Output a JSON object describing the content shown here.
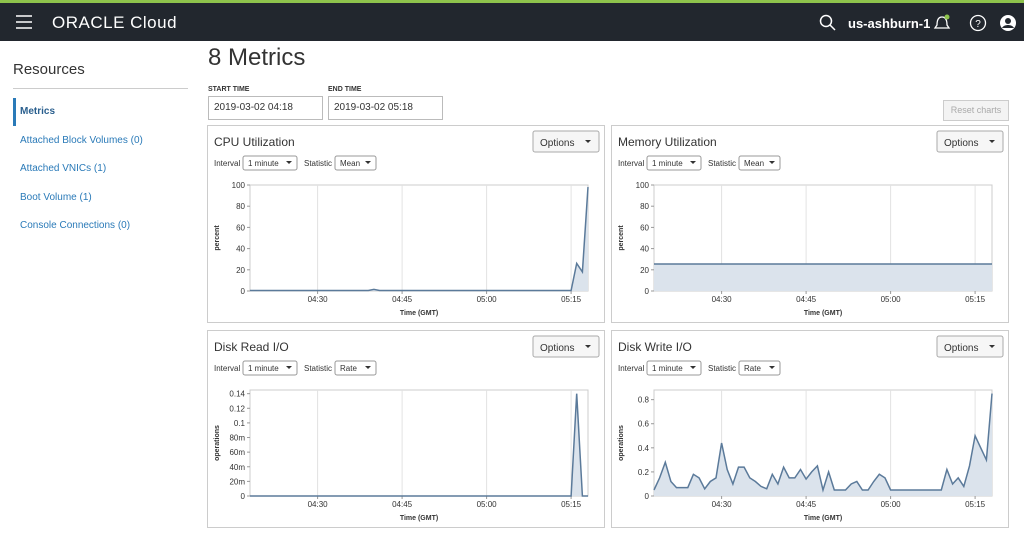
{
  "header": {
    "brand": "ORACLE Cloud",
    "region": "us-ashburn-1"
  },
  "sidebar": {
    "title": "Resources",
    "items": [
      "Metrics",
      "Attached Block Volumes (0)",
      "Attached VNICs (1)",
      "Boot Volume (1)",
      "Console Connections (0)"
    ]
  },
  "page": {
    "title": "8 Metrics",
    "start_label": "START TIME",
    "start_value": "2019-03-02 04:18",
    "end_label": "END TIME",
    "end_value": "2019-03-02 05:18",
    "reset": "Reset charts"
  },
  "chart_data": [
    {
      "type": "line",
      "title": "CPU Utilization",
      "options": "Options",
      "interval_label": "Interval",
      "interval": "1 minute",
      "statistic_label": "Statistic",
      "statistic": "Mean",
      "y_label": "percent",
      "x_label": "Time (GMT)",
      "color": "#5b7a9a",
      "grid": true,
      "x": [
        "04:18",
        "04:19",
        "04:20",
        "04:21",
        "04:22",
        "04:23",
        "04:24",
        "04:25",
        "04:26",
        "04:27",
        "04:28",
        "04:29",
        "04:30",
        "04:31",
        "04:32",
        "04:33",
        "04:34",
        "04:35",
        "04:36",
        "04:37",
        "04:38",
        "04:39",
        "04:40",
        "04:41",
        "04:42",
        "04:43",
        "04:44",
        "04:45",
        "04:46",
        "04:47",
        "04:48",
        "04:49",
        "04:50",
        "04:51",
        "04:52",
        "04:53",
        "04:54",
        "04:55",
        "04:56",
        "04:57",
        "04:58",
        "04:59",
        "05:00",
        "05:01",
        "05:02",
        "05:03",
        "05:04",
        "05:05",
        "05:06",
        "05:07",
        "05:08",
        "05:09",
        "05:10",
        "05:11",
        "05:12",
        "05:13",
        "05:14",
        "05:15",
        "05:16",
        "05:17",
        "05:18"
      ],
      "values": [
        0.5,
        0.5,
        0.5,
        0.5,
        0.5,
        0.5,
        0.5,
        0.5,
        0.5,
        0.5,
        0.5,
        0.5,
        0.5,
        0.5,
        0.5,
        0.5,
        0.5,
        0.5,
        0.5,
        0.5,
        0.5,
        0.5,
        1.5,
        0.5,
        0.5,
        0.5,
        0.5,
        0.5,
        0.5,
        0.5,
        0.5,
        0.5,
        0.5,
        0.5,
        0.5,
        0.5,
        0.5,
        0.5,
        0.5,
        0.5,
        0.5,
        0.5,
        0.5,
        0.5,
        0.5,
        0.5,
        0.5,
        0.5,
        0.5,
        0.5,
        0.5,
        0.5,
        0.5,
        0.5,
        0.5,
        0.5,
        0.5,
        0.5,
        26,
        18,
        98
      ],
      "ylim": [
        0,
        100
      ],
      "yticks": [
        0,
        20,
        40,
        60,
        80,
        100
      ],
      "xticks": [
        "04:30",
        "04:45",
        "05:00",
        "05:15"
      ]
    },
    {
      "type": "line",
      "title": "Memory Utilization",
      "options": "Options",
      "interval_label": "Interval",
      "interval": "1 minute",
      "statistic_label": "Statistic",
      "statistic": "Mean",
      "y_label": "percent",
      "x_label": "Time (GMT)",
      "color": "#5b7a9a",
      "grid": true,
      "x": [
        "04:18",
        "04:19",
        "04:20",
        "04:21",
        "04:22",
        "04:23",
        "04:24",
        "04:25",
        "04:26",
        "04:27",
        "04:28",
        "04:29",
        "04:30",
        "04:31",
        "04:32",
        "04:33",
        "04:34",
        "04:35",
        "04:36",
        "04:37",
        "04:38",
        "04:39",
        "04:40",
        "04:41",
        "04:42",
        "04:43",
        "04:44",
        "04:45",
        "04:46",
        "04:47",
        "04:48",
        "04:49",
        "04:50",
        "04:51",
        "04:52",
        "04:53",
        "04:54",
        "04:55",
        "04:56",
        "04:57",
        "04:58",
        "04:59",
        "05:00",
        "05:01",
        "05:02",
        "05:03",
        "05:04",
        "05:05",
        "05:06",
        "05:07",
        "05:08",
        "05:09",
        "05:10",
        "05:11",
        "05:12",
        "05:13",
        "05:14",
        "05:15",
        "05:16",
        "05:17",
        "05:18"
      ],
      "values": [
        25.5,
        25.5,
        25.5,
        25.5,
        25.5,
        25.5,
        25.5,
        25.5,
        25.5,
        25.5,
        25.5,
        25.5,
        25.5,
        25.5,
        25.5,
        25.5,
        25.5,
        25.5,
        25.5,
        25.5,
        25.5,
        25.5,
        25.5,
        25.5,
        25.5,
        25.5,
        25.5,
        25.5,
        25.5,
        25.5,
        25.5,
        25.5,
        25.5,
        25.5,
        25.5,
        25.5,
        25.5,
        25.5,
        25.5,
        25.5,
        25.5,
        25.5,
        25.5,
        25.5,
        25.5,
        25.5,
        25.5,
        25.5,
        25.5,
        25.5,
        25.5,
        25.5,
        25.5,
        25.5,
        25.5,
        25.5,
        25.5,
        25.5,
        25.5,
        25.5,
        25.5
      ],
      "ylim": [
        0,
        100
      ],
      "yticks": [
        0,
        20,
        40,
        60,
        80,
        100
      ],
      "xticks": [
        "04:30",
        "04:45",
        "05:00",
        "05:15"
      ]
    },
    {
      "type": "line",
      "title": "Disk Read I/O",
      "options": "Options",
      "interval_label": "Interval",
      "interval": "1 minute",
      "statistic_label": "Statistic",
      "statistic": "Rate",
      "y_label": "operations",
      "x_label": "Time (GMT)",
      "color": "#5b7a9a",
      "grid": true,
      "x": [
        "04:18",
        "04:19",
        "04:20",
        "04:21",
        "04:22",
        "04:23",
        "04:24",
        "04:25",
        "04:26",
        "04:27",
        "04:28",
        "04:29",
        "04:30",
        "04:31",
        "04:32",
        "04:33",
        "04:34",
        "04:35",
        "04:36",
        "04:37",
        "04:38",
        "04:39",
        "04:40",
        "04:41",
        "04:42",
        "04:43",
        "04:44",
        "04:45",
        "04:46",
        "04:47",
        "04:48",
        "04:49",
        "04:50",
        "04:51",
        "04:52",
        "04:53",
        "04:54",
        "04:55",
        "04:56",
        "04:57",
        "04:58",
        "04:59",
        "05:00",
        "05:01",
        "05:02",
        "05:03",
        "05:04",
        "05:05",
        "05:06",
        "05:07",
        "05:08",
        "05:09",
        "05:10",
        "05:11",
        "05:12",
        "05:13",
        "05:14",
        "05:15",
        "05:16",
        "05:17",
        "05:18"
      ],
      "values": [
        0,
        0,
        0,
        0,
        0,
        0,
        0,
        0,
        0,
        0,
        0,
        0,
        0,
        0,
        0,
        0,
        0,
        0,
        0,
        0,
        0,
        0,
        0,
        0,
        0,
        0,
        0,
        0,
        0,
        0,
        0,
        0,
        0,
        0,
        0,
        0,
        0,
        0,
        0,
        0,
        0,
        0,
        0,
        0,
        0,
        0,
        0,
        0,
        0,
        0,
        0,
        0,
        0,
        0,
        0,
        0,
        0,
        0,
        0.14,
        0,
        0
      ],
      "ylim": [
        0,
        0.145
      ],
      "yticks": [
        0,
        {
          "value": 0.02,
          "label": "20m"
        },
        {
          "value": 0.04,
          "label": "40m"
        },
        {
          "value": 0.06,
          "label": "60m"
        },
        {
          "value": 0.08,
          "label": "80m"
        },
        0.1,
        0.12,
        0.14
      ],
      "xticks": [
        "04:30",
        "04:45",
        "05:00",
        "05:15"
      ]
    },
    {
      "type": "line",
      "title": "Disk Write I/O",
      "options": "Options",
      "interval_label": "Interval",
      "interval": "1 minute",
      "statistic_label": "Statistic",
      "statistic": "Rate",
      "y_label": "operations",
      "x_label": "Time (GMT)",
      "color": "#5b7a9a",
      "grid": true,
      "x": [
        "04:18",
        "04:19",
        "04:20",
        "04:21",
        "04:22",
        "04:23",
        "04:24",
        "04:25",
        "04:26",
        "04:27",
        "04:28",
        "04:29",
        "04:30",
        "04:31",
        "04:32",
        "04:33",
        "04:34",
        "04:35",
        "04:36",
        "04:37",
        "04:38",
        "04:39",
        "04:40",
        "04:41",
        "04:42",
        "04:43",
        "04:44",
        "04:45",
        "04:46",
        "04:47",
        "04:48",
        "04:49",
        "04:50",
        "04:51",
        "04:52",
        "04:53",
        "04:54",
        "04:55",
        "04:56",
        "04:57",
        "04:58",
        "04:59",
        "05:00",
        "05:01",
        "05:02",
        "05:03",
        "05:04",
        "05:05",
        "05:06",
        "05:07",
        "05:08",
        "05:09",
        "05:10",
        "05:11",
        "05:12",
        "05:13",
        "05:14",
        "05:15",
        "05:16",
        "05:17",
        "05:18"
      ],
      "values": [
        0.05,
        0.15,
        0.28,
        0.12,
        0.07,
        0.07,
        0.07,
        0.18,
        0.15,
        0.06,
        0.12,
        0.15,
        0.44,
        0.22,
        0.1,
        0.24,
        0.24,
        0.15,
        0.12,
        0.08,
        0.06,
        0.18,
        0.1,
        0.24,
        0.15,
        0.15,
        0.22,
        0.14,
        0.2,
        0.25,
        0.05,
        0.2,
        0.05,
        0.05,
        0.05,
        0.1,
        0.12,
        0.05,
        0.05,
        0.12,
        0.18,
        0.15,
        0.05,
        0.05,
        0.05,
        0.05,
        0.05,
        0.05,
        0.05,
        0.05,
        0.05,
        0.05,
        0.22,
        0.1,
        0.15,
        0.08,
        0.25,
        0.5,
        0.4,
        0.3,
        0.85
      ],
      "ylim": [
        0,
        0.88
      ],
      "yticks": [
        0,
        0.2,
        0.4,
        0.6,
        0.8
      ],
      "xticks": [
        "04:30",
        "04:45",
        "05:00",
        "05:15"
      ]
    }
  ]
}
